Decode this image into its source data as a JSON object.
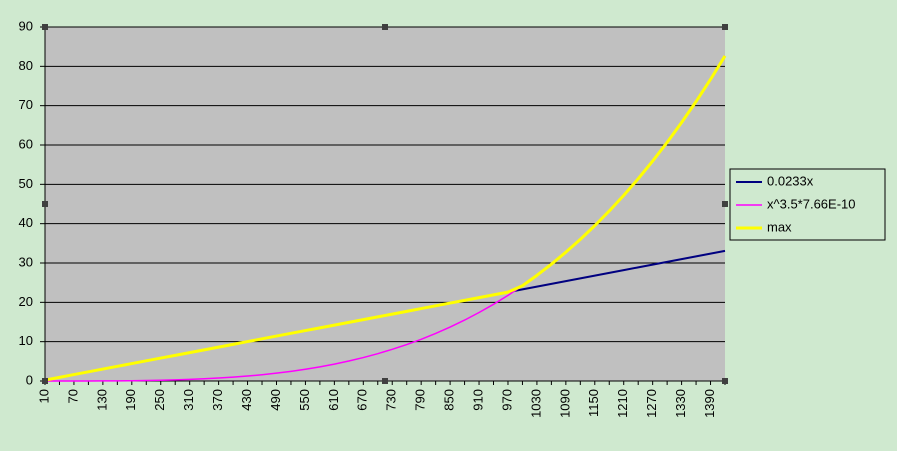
{
  "chart_data": {
    "type": "line",
    "categories": [
      "10",
      null,
      "70",
      null,
      "130",
      null,
      "190",
      null,
      "250",
      null,
      "310",
      null,
      "370",
      null,
      "430",
      null,
      "490",
      null,
      "550",
      null,
      "610",
      null,
      "670",
      null,
      "730",
      null,
      "790",
      null,
      "850",
      null,
      "910",
      null,
      "970",
      null,
      "1030",
      null,
      "1090",
      null,
      "1150",
      null,
      "1210",
      null,
      "1270",
      null,
      "1330",
      null,
      "1390",
      null
    ],
    "series": [
      {
        "name": "0.0233x",
        "color": "#000080",
        "values": [
          0.23,
          0.93,
          1.63,
          2.33,
          3.03,
          3.73,
          4.43,
          5.13,
          5.83,
          6.52,
          7.22,
          7.92,
          8.62,
          9.32,
          10.02,
          10.72,
          11.42,
          12.12,
          12.82,
          13.51,
          14.21,
          14.91,
          15.61,
          16.31,
          17.01,
          17.71,
          18.41,
          19.11,
          19.81,
          20.5,
          21.2,
          21.9,
          22.6,
          23.3,
          24.0,
          24.7,
          25.4,
          26.1,
          26.8,
          27.49,
          28.19,
          28.89,
          29.59,
          30.29,
          30.99,
          31.69,
          32.39,
          33.09
        ]
      },
      {
        "name": "x^3.5*7.66E-10",
        "color": "#ff00ff",
        "values": [
          0,
          0,
          0,
          0.01,
          0.02,
          0.04,
          0.07,
          0.12,
          0.19,
          0.28,
          0.4,
          0.56,
          0.75,
          0.98,
          1.26,
          1.6,
          1.99,
          2.46,
          2.99,
          3.6,
          4.29,
          5.08,
          5.96,
          6.95,
          8.05,
          9.27,
          10.61,
          12.09,
          13.71,
          15.48,
          17.41,
          19.5,
          21.77,
          24.22,
          26.86,
          29.7,
          32.75,
          36.01,
          39.5,
          43.23,
          47.2,
          51.42,
          55.91,
          60.67,
          65.72,
          71.05,
          76.69,
          82.64
        ]
      },
      {
        "name": "max",
        "color": "#ffff00",
        "values": [
          0.23,
          0.93,
          1.63,
          2.33,
          3.03,
          3.73,
          4.43,
          5.13,
          5.83,
          6.52,
          7.22,
          7.92,
          8.62,
          9.32,
          10.02,
          10.72,
          11.42,
          12.12,
          12.82,
          13.51,
          14.21,
          14.91,
          15.61,
          16.31,
          17.01,
          17.71,
          18.41,
          19.11,
          19.81,
          20.5,
          21.2,
          21.9,
          22.6,
          24.22,
          26.86,
          29.7,
          32.75,
          36.01,
          39.5,
          43.23,
          47.2,
          51.42,
          55.91,
          60.67,
          65.72,
          71.05,
          76.69,
          82.64
        ]
      }
    ],
    "ylim": [
      0,
      90
    ],
    "yticks": [
      0,
      10,
      20,
      30,
      40,
      50,
      60,
      70,
      80,
      90
    ],
    "grid": true,
    "legend": "right"
  }
}
